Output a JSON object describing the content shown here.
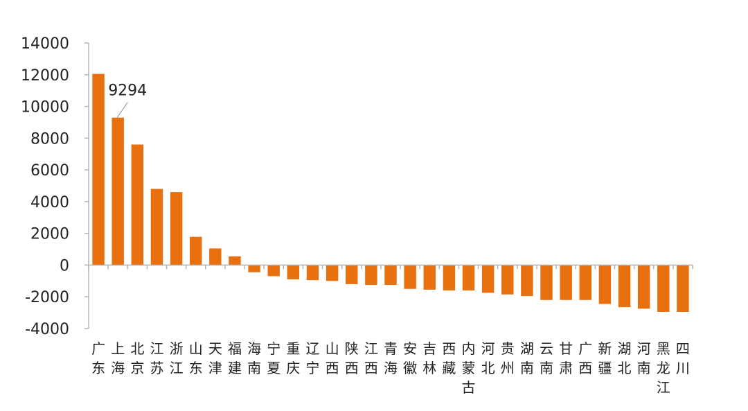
{
  "chart_data": {
    "type": "bar",
    "title": "",
    "xlabel": "",
    "ylabel": "",
    "ylim": [
      -4000,
      14000
    ],
    "yticks": [
      14000,
      12000,
      10000,
      8000,
      6000,
      4000,
      2000,
      0,
      -2000,
      -4000
    ],
    "grid": false,
    "bar_color": "#E8700F",
    "categories": [
      "广东",
      "上海",
      "北京",
      "江苏",
      "浙江",
      "山东",
      "天津",
      "福建",
      "海南",
      "宁夏",
      "重庆",
      "辽宁",
      "山西",
      "陕西",
      "江西",
      "青海",
      "安徽",
      "吉林",
      "西藏",
      "内蒙古",
      "河北",
      "贵州",
      "湖南",
      "云南",
      "甘肃",
      "广西",
      "新疆",
      "湖北",
      "河南",
      "黑龙江",
      "四川"
    ],
    "values": [
      12050,
      9294,
      7600,
      4800,
      4600,
      1780,
      1050,
      550,
      -450,
      -700,
      -900,
      -950,
      -1000,
      -1200,
      -1250,
      -1250,
      -1500,
      -1550,
      -1600,
      -1600,
      -1750,
      -1850,
      -1950,
      -2200,
      -2200,
      -2200,
      -2450,
      -2650,
      -2750,
      -2950,
      -2950
    ],
    "annotations": [
      {
        "category": "上海",
        "text": "9294"
      }
    ]
  }
}
